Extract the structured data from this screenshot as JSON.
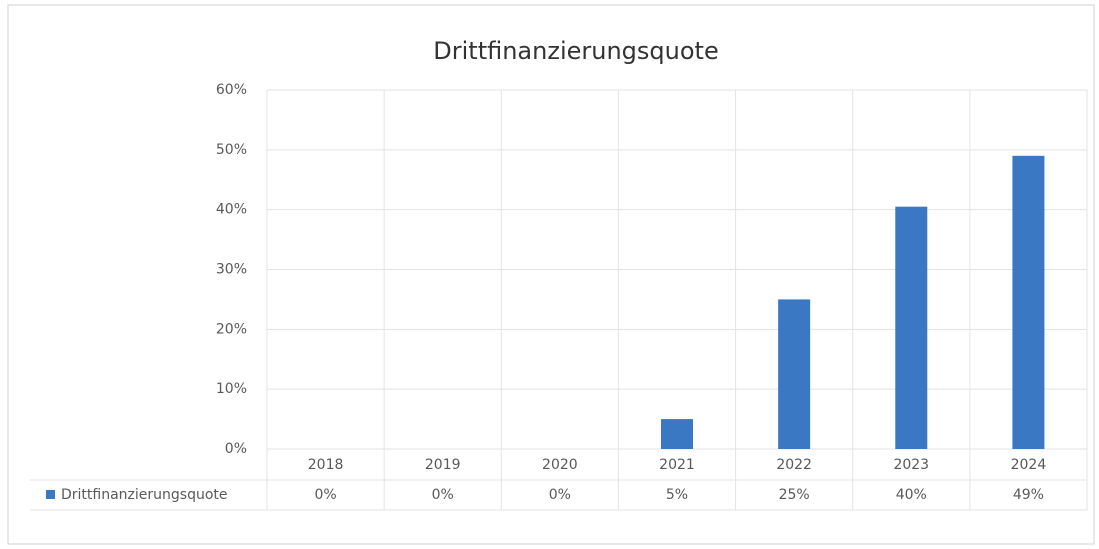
{
  "chart_data": {
    "type": "bar",
    "title": "Drittfinanzierungsquote",
    "categories": [
      "2018",
      "2019",
      "2020",
      "2021",
      "2022",
      "2023",
      "2024"
    ],
    "series": [
      {
        "name": "Drittfinanzierungsquote",
        "color": "#3a78c4",
        "values": [
          0,
          0,
          0,
          5,
          25,
          40.5,
          49
        ],
        "value_labels": [
          "0%",
          "0%",
          "0%",
          "5%",
          "25%",
          "40%",
          "49%"
        ]
      }
    ],
    "ylim": [
      0,
      60
    ],
    "yticks": [
      {
        "value": 0,
        "label": "0%"
      },
      {
        "value": 10,
        "label": "10%"
      },
      {
        "value": 20,
        "label": "20%"
      },
      {
        "value": 30,
        "label": "30%"
      },
      {
        "value": 40,
        "label": "40%"
      },
      {
        "value": 50,
        "label": "50%"
      },
      {
        "value": 60,
        "label": "60%"
      }
    ],
    "grid": true,
    "data_table": true
  }
}
